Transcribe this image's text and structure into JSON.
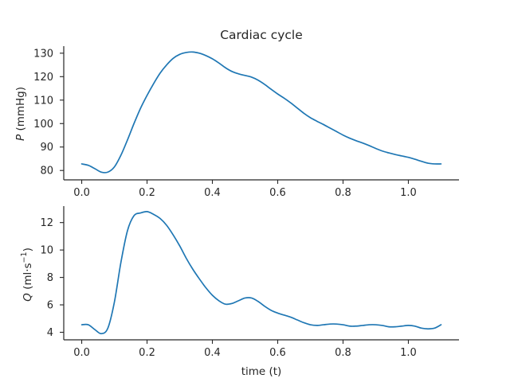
{
  "chart_data": [
    {
      "type": "line",
      "title": "Cardiac cycle",
      "ylabel_var": "P",
      "ylabel_unit": " (mmHg)",
      "xlabel": "",
      "xlim": [
        -0.055,
        1.155
      ],
      "ylim": [
        76,
        133
      ],
      "xticks": [
        0.0,
        0.2,
        0.4,
        0.6,
        0.8,
        1.0
      ],
      "xtick_labels": [
        "0.0",
        "0.2",
        "0.4",
        "0.6",
        "0.8",
        "1.0"
      ],
      "yticks": [
        80,
        90,
        100,
        110,
        120,
        130
      ],
      "ytick_labels": [
        "80",
        "90",
        "100",
        "110",
        "120",
        "130"
      ],
      "grid": false,
      "series": [
        {
          "color": "#1f77b4",
          "x": [
            0.0,
            0.02,
            0.04,
            0.06,
            0.08,
            0.1,
            0.12,
            0.14,
            0.16,
            0.18,
            0.2,
            0.22,
            0.24,
            0.26,
            0.28,
            0.3,
            0.32,
            0.34,
            0.36,
            0.38,
            0.4,
            0.42,
            0.44,
            0.46,
            0.48,
            0.5,
            0.52,
            0.54,
            0.56,
            0.58,
            0.6,
            0.62,
            0.64,
            0.66,
            0.68,
            0.7,
            0.72,
            0.74,
            0.76,
            0.78,
            0.8,
            0.82,
            0.84,
            0.86,
            0.88,
            0.9,
            0.92,
            0.94,
            0.96,
            0.98,
            1.0,
            1.02,
            1.04,
            1.06,
            1.08,
            1.1
          ],
          "y": [
            82.8,
            82.2,
            80.8,
            79.3,
            79.3,
            81.5,
            86.5,
            93.0,
            100.0,
            106.5,
            112.0,
            117.0,
            121.5,
            125.0,
            127.8,
            129.5,
            130.3,
            130.5,
            130.0,
            129.0,
            127.6,
            125.8,
            123.8,
            122.2,
            121.2,
            120.5,
            119.8,
            118.5,
            116.7,
            114.6,
            112.6,
            110.8,
            108.8,
            106.6,
            104.4,
            102.5,
            101.0,
            99.6,
            98.1,
            96.6,
            95.1,
            93.8,
            92.7,
            91.7,
            90.6,
            89.4,
            88.3,
            87.5,
            86.8,
            86.2,
            85.6,
            84.8,
            83.9,
            83.1,
            82.8,
            82.8
          ]
        }
      ]
    },
    {
      "type": "line",
      "title": "",
      "ylabel_var": "Q",
      "ylabel_unit": " (ml·s",
      "ylabel_sup": "−1",
      "ylabel_close": ")",
      "xlabel": "time (t)",
      "xlim": [
        -0.055,
        1.155
      ],
      "ylim": [
        3.45,
        13.2
      ],
      "xticks": [
        0.0,
        0.2,
        0.4,
        0.6,
        0.8,
        1.0
      ],
      "xtick_labels": [
        "0.0",
        "0.2",
        "0.4",
        "0.6",
        "0.8",
        "1.0"
      ],
      "yticks": [
        4,
        6,
        8,
        10,
        12
      ],
      "ytick_labels": [
        "4",
        "6",
        "8",
        "10",
        "12"
      ],
      "grid": false,
      "series": [
        {
          "color": "#1f77b4",
          "x": [
            0.0,
            0.02,
            0.04,
            0.06,
            0.08,
            0.1,
            0.12,
            0.14,
            0.16,
            0.18,
            0.2,
            0.22,
            0.24,
            0.26,
            0.28,
            0.3,
            0.32,
            0.34,
            0.36,
            0.38,
            0.4,
            0.42,
            0.44,
            0.46,
            0.48,
            0.5,
            0.52,
            0.54,
            0.56,
            0.58,
            0.6,
            0.62,
            0.64,
            0.66,
            0.68,
            0.7,
            0.72,
            0.74,
            0.76,
            0.78,
            0.8,
            0.82,
            0.84,
            0.86,
            0.88,
            0.9,
            0.92,
            0.94,
            0.96,
            0.98,
            1.0,
            1.02,
            1.04,
            1.06,
            1.08,
            1.1
          ],
          "y": [
            4.55,
            4.55,
            4.2,
            3.9,
            4.3,
            6.2,
            9.1,
            11.4,
            12.5,
            12.7,
            12.8,
            12.6,
            12.3,
            11.8,
            11.1,
            10.3,
            9.4,
            8.6,
            7.9,
            7.25,
            6.7,
            6.3,
            6.05,
            6.1,
            6.3,
            6.5,
            6.5,
            6.25,
            5.9,
            5.6,
            5.4,
            5.25,
            5.1,
            4.9,
            4.7,
            4.55,
            4.5,
            4.55,
            4.6,
            4.6,
            4.55,
            4.45,
            4.45,
            4.5,
            4.55,
            4.55,
            4.5,
            4.4,
            4.4,
            4.45,
            4.5,
            4.45,
            4.3,
            4.25,
            4.3,
            4.55
          ]
        }
      ]
    }
  ]
}
